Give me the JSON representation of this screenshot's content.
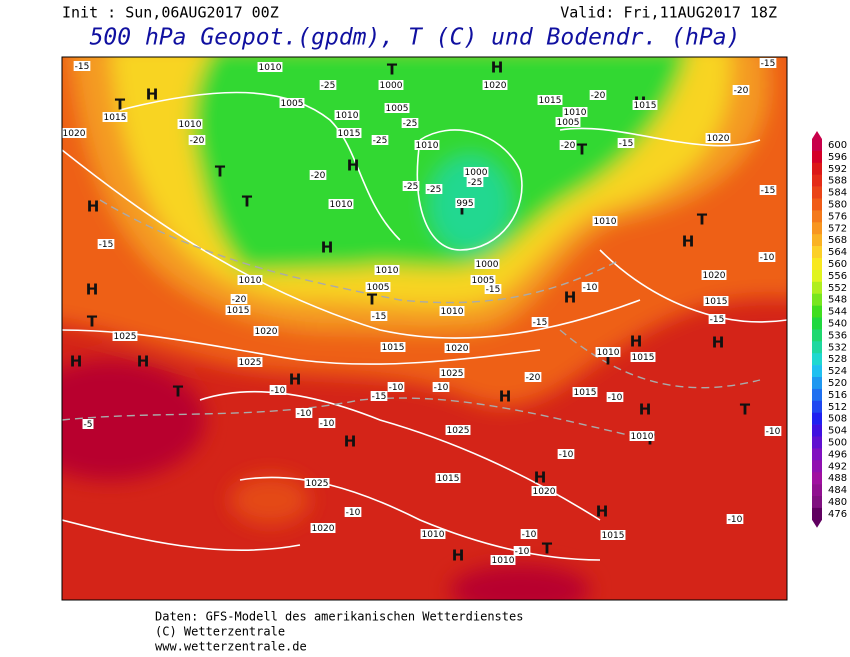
{
  "header": {
    "init": "Init : Sun,06AUG2017 00Z",
    "valid": "Valid: Fri,11AUG2017 18Z",
    "title": "500 hPa Geopot.(gpdm), T (C) und Bodendr. (hPa)"
  },
  "map": {
    "pressure_centers": [
      "H",
      "T",
      "H",
      "H",
      "T",
      "H",
      "H",
      "T",
      "H",
      "H",
      "H",
      "H",
      "T",
      "T",
      "T",
      "T",
      "H",
      "T",
      "H",
      "T",
      "H",
      "T",
      "H",
      "H",
      "H",
      "T",
      "H",
      "H",
      "T",
      "H",
      "H",
      "H",
      "T",
      "T"
    ],
    "isobar_labels": [
      "1010",
      "1005",
      "1000",
      "1005",
      "1010",
      "1015",
      "1010",
      "1000",
      "995",
      "1020",
      "1015",
      "1010",
      "1005",
      "1015",
      "1020",
      "1015",
      "1010",
      "1020",
      "1010",
      "1010",
      "1015",
      "1020",
      "1005",
      "1010",
      "1000",
      "1005",
      "1010",
      "1020",
      "1015",
      "1025",
      "1025",
      "1025",
      "1015",
      "1010",
      "1015",
      "1020",
      "1015",
      "1010",
      "1025",
      "1025",
      "1015",
      "1020",
      "1020",
      "1010",
      "1010",
      "1015",
      "1010"
    ],
    "temperature_labels": [
      "-15",
      "-20",
      "-25",
      "-25",
      "-25",
      "-20",
      "-25",
      "-25",
      "-25",
      "-20",
      "-15",
      "-20",
      "-20",
      "-15",
      "-15",
      "-20",
      "-15",
      "-15",
      "-20",
      "-15",
      "-10",
      "-10",
      "-15",
      "-10",
      "-10",
      "-10",
      "-15",
      "-10",
      "-10",
      "-10",
      "-10",
      "-10",
      "-10",
      "-10",
      "-5",
      "-10",
      "-10",
      "-15"
    ]
  },
  "colorbar": {
    "labels": [
      600,
      596,
      592,
      588,
      584,
      580,
      576,
      572,
      568,
      564,
      560,
      556,
      552,
      548,
      544,
      540,
      536,
      532,
      528,
      524,
      520,
      516,
      512,
      508,
      504,
      500,
      496,
      492,
      488,
      484,
      480,
      476
    ],
    "colors": [
      "#c8004a",
      "#d40028",
      "#dc1818",
      "#e42c18",
      "#ea4418",
      "#f05c18",
      "#f47a1c",
      "#f89620",
      "#fab224",
      "#fcd028",
      "#f8e820",
      "#e0f420",
      "#b0ee20",
      "#78e620",
      "#40de20",
      "#20d840",
      "#20d870",
      "#20d8a0",
      "#20d8d0",
      "#20c0f0",
      "#2098f0",
      "#2070f0",
      "#2048f0",
      "#2020f0",
      "#4010e0",
      "#6010d0",
      "#8010c0",
      "#9010b0",
      "#a010a0",
      "#901090",
      "#801080",
      "#600060"
    ]
  },
  "footer": [
    "Daten: GFS-Modell des amerikanischen Wetterdienstes",
    "(C) Wetterzentrale",
    "www.wetterzentrale.de"
  ]
}
